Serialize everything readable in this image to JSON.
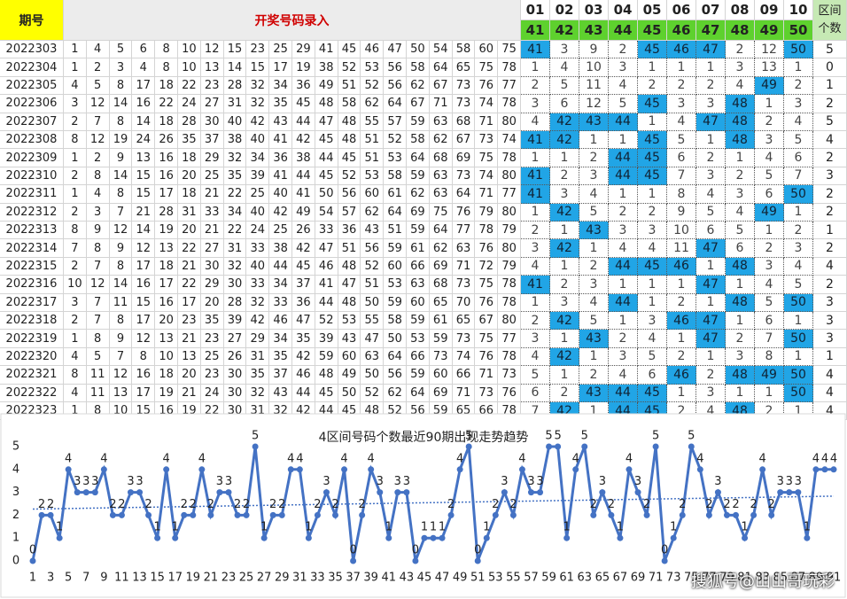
{
  "table": {
    "header": {
      "period": "期号",
      "input": "开奖号码录入",
      "columns": [
        "01",
        "02",
        "03",
        "04",
        "05",
        "06",
        "07",
        "08",
        "09",
        "10"
      ],
      "zones": [
        41,
        42,
        43,
        44,
        45,
        46,
        47,
        48,
        49,
        50
      ],
      "count": "区间个数"
    },
    "rows": [
      {
        "period": "2022303",
        "numbers": [
          1,
          4,
          5,
          6,
          8,
          10,
          12,
          15,
          23,
          25,
          29,
          41,
          45,
          46,
          47,
          50,
          54,
          58,
          60,
          75
        ],
        "cells": [
          41,
          3,
          9,
          2,
          45,
          46,
          47,
          2,
          12,
          50
        ],
        "count": 5
      },
      {
        "period": "2022304",
        "numbers": [
          1,
          2,
          3,
          4,
          8,
          10,
          13,
          14,
          15,
          17,
          19,
          38,
          52,
          53,
          56,
          58,
          64,
          65,
          75,
          78
        ],
        "cells": [
          1,
          4,
          10,
          3,
          1,
          1,
          1,
          3,
          13,
          1
        ],
        "count": 0
      },
      {
        "period": "2022305",
        "numbers": [
          4,
          5,
          8,
          17,
          18,
          22,
          23,
          28,
          32,
          34,
          36,
          49,
          51,
          52,
          56,
          62,
          67,
          73,
          76,
          77
        ],
        "cells": [
          2,
          5,
          11,
          4,
          2,
          2,
          2,
          4,
          49,
          2
        ],
        "count": 1
      },
      {
        "period": "2022306",
        "numbers": [
          3,
          12,
          14,
          16,
          22,
          24,
          27,
          31,
          32,
          35,
          45,
          48,
          58,
          62,
          64,
          67,
          71,
          73,
          74,
          78
        ],
        "cells": [
          3,
          6,
          12,
          5,
          45,
          3,
          3,
          48,
          1,
          3
        ],
        "count": 2
      },
      {
        "period": "2022307",
        "numbers": [
          2,
          7,
          8,
          14,
          18,
          28,
          30,
          40,
          42,
          43,
          44,
          47,
          48,
          55,
          57,
          59,
          63,
          68,
          71,
          80
        ],
        "cells": [
          4,
          42,
          43,
          44,
          1,
          4,
          47,
          48,
          2,
          4
        ],
        "count": 5
      },
      {
        "period": "2022308",
        "numbers": [
          8,
          12,
          19,
          24,
          26,
          35,
          37,
          38,
          40,
          41,
          42,
          45,
          48,
          51,
          52,
          58,
          62,
          67,
          73,
          74
        ],
        "cells": [
          41,
          42,
          1,
          1,
          45,
          5,
          1,
          48,
          3,
          5
        ],
        "count": 4
      },
      {
        "period": "2022309",
        "numbers": [
          1,
          2,
          9,
          13,
          16,
          18,
          29,
          32,
          34,
          36,
          38,
          44,
          45,
          51,
          53,
          64,
          68,
          69,
          75,
          78
        ],
        "cells": [
          1,
          1,
          2,
          44,
          45,
          6,
          2,
          1,
          4,
          6
        ],
        "count": 2
      },
      {
        "period": "2022310",
        "numbers": [
          2,
          8,
          14,
          15,
          16,
          20,
          25,
          35,
          39,
          41,
          44,
          45,
          52,
          53,
          58,
          59,
          63,
          73,
          74,
          80
        ],
        "cells": [
          41,
          2,
          3,
          44,
          45,
          7,
          3,
          2,
          5,
          7
        ],
        "count": 3
      },
      {
        "period": "2022311",
        "numbers": [
          1,
          4,
          8,
          15,
          17,
          18,
          21,
          22,
          25,
          40,
          41,
          50,
          56,
          60,
          61,
          62,
          63,
          64,
          71,
          77
        ],
        "cells": [
          41,
          3,
          4,
          1,
          1,
          8,
          4,
          3,
          6,
          50
        ],
        "count": 2
      },
      {
        "period": "2022312",
        "numbers": [
          2,
          3,
          7,
          21,
          28,
          31,
          33,
          34,
          40,
          42,
          49,
          54,
          57,
          62,
          64,
          69,
          75,
          76,
          79,
          80
        ],
        "cells": [
          1,
          42,
          5,
          2,
          2,
          9,
          5,
          4,
          49,
          1
        ],
        "count": 2
      },
      {
        "period": "2022313",
        "numbers": [
          8,
          9,
          12,
          14,
          19,
          20,
          21,
          22,
          24,
          25,
          26,
          33,
          36,
          43,
          51,
          59,
          64,
          77,
          78,
          79
        ],
        "cells": [
          2,
          1,
          43,
          3,
          3,
          10,
          6,
          5,
          1,
          2
        ],
        "count": 1
      },
      {
        "period": "2022314",
        "numbers": [
          7,
          8,
          9,
          12,
          13,
          22,
          27,
          31,
          33,
          38,
          42,
          47,
          51,
          56,
          59,
          61,
          62,
          63,
          76,
          80
        ],
        "cells": [
          3,
          42,
          1,
          4,
          4,
          11,
          47,
          6,
          2,
          3
        ],
        "count": 2
      },
      {
        "period": "2022315",
        "numbers": [
          2,
          7,
          8,
          17,
          18,
          21,
          30,
          32,
          40,
          44,
          45,
          46,
          48,
          52,
          60,
          66,
          69,
          71,
          72,
          79
        ],
        "cells": [
          4,
          1,
          2,
          44,
          45,
          46,
          1,
          48,
          3,
          4
        ],
        "count": 4
      },
      {
        "period": "2022316",
        "numbers": [
          10,
          12,
          14,
          16,
          17,
          22,
          29,
          30,
          33,
          34,
          37,
          41,
          47,
          51,
          53,
          63,
          68,
          73,
          75,
          78
        ],
        "cells": [
          41,
          2,
          3,
          1,
          1,
          1,
          47,
          1,
          4,
          5
        ],
        "count": 2
      },
      {
        "period": "2022317",
        "numbers": [
          3,
          7,
          11,
          15,
          16,
          17,
          20,
          28,
          32,
          33,
          36,
          44,
          48,
          50,
          59,
          60,
          65,
          70,
          76,
          78
        ],
        "cells": [
          1,
          3,
          4,
          44,
          1,
          2,
          1,
          48,
          5,
          50
        ],
        "count": 3
      },
      {
        "period": "2022318",
        "numbers": [
          2,
          7,
          8,
          17,
          20,
          23,
          35,
          39,
          42,
          46,
          47,
          52,
          53,
          55,
          58,
          59,
          61,
          65,
          67,
          80
        ],
        "cells": [
          2,
          42,
          5,
          1,
          3,
          46,
          47,
          1,
          6,
          1
        ],
        "count": 3
      },
      {
        "period": "2022319",
        "numbers": [
          1,
          8,
          9,
          12,
          13,
          21,
          23,
          27,
          29,
          34,
          35,
          39,
          43,
          47,
          50,
          53,
          59,
          73,
          75,
          77
        ],
        "cells": [
          3,
          1,
          43,
          2,
          4,
          1,
          47,
          2,
          7,
          50
        ],
        "count": 3
      },
      {
        "period": "2022320",
        "numbers": [
          4,
          5,
          7,
          8,
          10,
          13,
          25,
          26,
          31,
          35,
          42,
          59,
          60,
          63,
          64,
          66,
          73,
          74,
          76,
          78
        ],
        "cells": [
          4,
          42,
          1,
          3,
          5,
          2,
          1,
          3,
          8,
          1
        ],
        "count": 1
      },
      {
        "period": "2022321",
        "numbers": [
          8,
          11,
          12,
          16,
          18,
          20,
          23,
          30,
          35,
          37,
          46,
          48,
          49,
          50,
          56,
          59,
          60,
          66,
          71,
          73
        ],
        "cells": [
          5,
          1,
          2,
          4,
          6,
          46,
          2,
          48,
          49,
          50
        ],
        "count": 4
      },
      {
        "period": "2022322",
        "numbers": [
          4,
          11,
          13,
          17,
          19,
          21,
          24,
          30,
          32,
          43,
          44,
          45,
          50,
          52,
          62,
          64,
          69,
          71,
          73,
          76
        ],
        "cells": [
          6,
          2,
          43,
          44,
          45,
          1,
          3,
          1,
          1,
          50
        ],
        "count": 4
      },
      {
        "period": "2022323",
        "numbers": [
          1,
          8,
          10,
          15,
          16,
          19,
          22,
          30,
          31,
          32,
          42,
          44,
          45,
          48,
          52,
          56,
          59,
          65,
          66,
          78
        ],
        "cells": [
          7,
          42,
          1,
          44,
          45,
          2,
          4,
          48,
          2,
          1
        ],
        "count": 4
      }
    ]
  },
  "chart_data": {
    "type": "line",
    "title": "4区间号码个数最近90期出现走势趋势",
    "color": "#4472c4",
    "trendline": true,
    "x": [
      1,
      2,
      3,
      4,
      5,
      6,
      7,
      8,
      9,
      10,
      11,
      12,
      13,
      14,
      15,
      16,
      17,
      18,
      19,
      20,
      21,
      22,
      23,
      24,
      25,
      26,
      27,
      28,
      29,
      30,
      31,
      32,
      33,
      34,
      35,
      36,
      37,
      38,
      39,
      40,
      41,
      42,
      43,
      44,
      45,
      46,
      47,
      48,
      49,
      50,
      51,
      52,
      53,
      54,
      55,
      56,
      57,
      58,
      59,
      60,
      61,
      62,
      63,
      64,
      65,
      66,
      67,
      68,
      69,
      70,
      71,
      72,
      73,
      74,
      75,
      76,
      77,
      78,
      79,
      80,
      81,
      82,
      83,
      84,
      85,
      86,
      87,
      88,
      89,
      90,
      91
    ],
    "values": [
      0,
      2,
      2,
      1,
      4,
      3,
      3,
      3,
      4,
      2,
      2,
      3,
      3,
      2,
      1,
      4,
      1,
      2,
      2,
      4,
      2,
      3,
      3,
      2,
      2,
      5,
      1,
      2,
      2,
      4,
      4,
      1,
      2,
      3,
      2,
      4,
      0,
      2,
      4,
      3,
      1,
      3,
      3,
      0,
      1,
      1,
      1,
      2,
      4,
      5,
      0,
      1,
      2,
      3,
      2,
      4,
      3,
      3,
      5,
      5,
      1,
      4,
      5,
      2,
      3,
      2,
      1,
      4,
      3,
      2,
      5,
      0,
      1,
      2,
      5,
      4,
      2,
      3,
      2,
      2,
      1,
      2,
      4,
      2,
      3,
      3,
      3,
      1,
      4,
      4,
      4
    ],
    "xlim": [
      1,
      91
    ],
    "xticks": [
      1,
      3,
      5,
      7,
      9,
      11,
      13,
      15,
      17,
      19,
      21,
      23,
      25,
      27,
      29,
      31,
      33,
      35,
      37,
      39,
      41,
      43,
      45,
      47,
      49,
      51,
      53,
      55,
      57,
      59,
      61,
      63,
      65,
      67,
      69,
      71,
      73,
      75,
      77,
      79,
      81,
      83,
      85,
      87,
      89,
      91
    ],
    "ylim": [
      0,
      5
    ],
    "yticks": [
      0,
      1,
      2,
      3,
      4,
      5
    ]
  },
  "watermark": "搜狐号@山山哥玩彩"
}
